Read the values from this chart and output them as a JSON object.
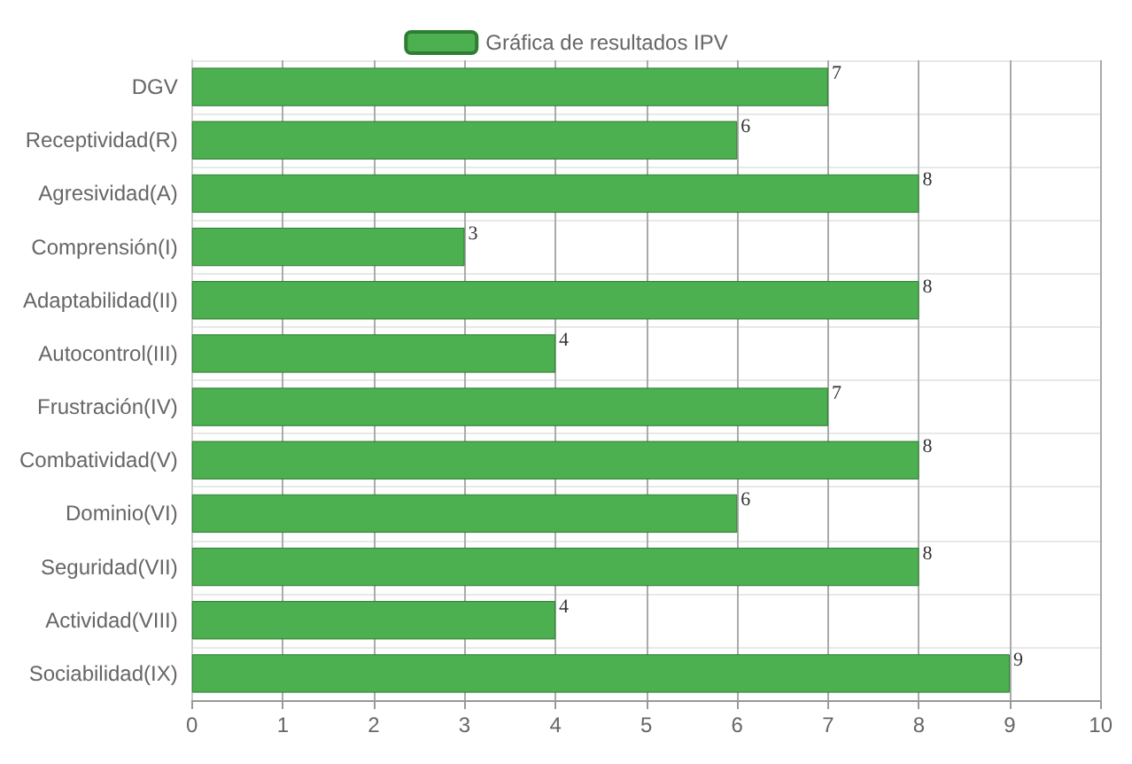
{
  "chart_data": {
    "type": "bar",
    "orientation": "horizontal",
    "categories": [
      "DGV",
      "Receptividad(R)",
      "Agresividad(A)",
      "Comprensión(I)",
      "Adaptabilidad(II)",
      "Autocontrol(III)",
      "Frustración(IV)",
      "Combatividad(V)",
      "Dominio(VI)",
      "Seguridad(VII)",
      "Actividad(VIII)",
      "Sociabilidad(IX)"
    ],
    "series": [
      {
        "name": "Gráfica de resultados IPV",
        "color": "#4caf50",
        "values": [
          7,
          6,
          8,
          3,
          8,
          4,
          7,
          8,
          6,
          8,
          4,
          9
        ]
      }
    ],
    "xlim": [
      0,
      10
    ],
    "xticks": [
      0,
      1,
      2,
      3,
      4,
      5,
      6,
      7,
      8,
      9,
      10
    ],
    "grid": true,
    "legend": "top",
    "data_labels": true
  }
}
